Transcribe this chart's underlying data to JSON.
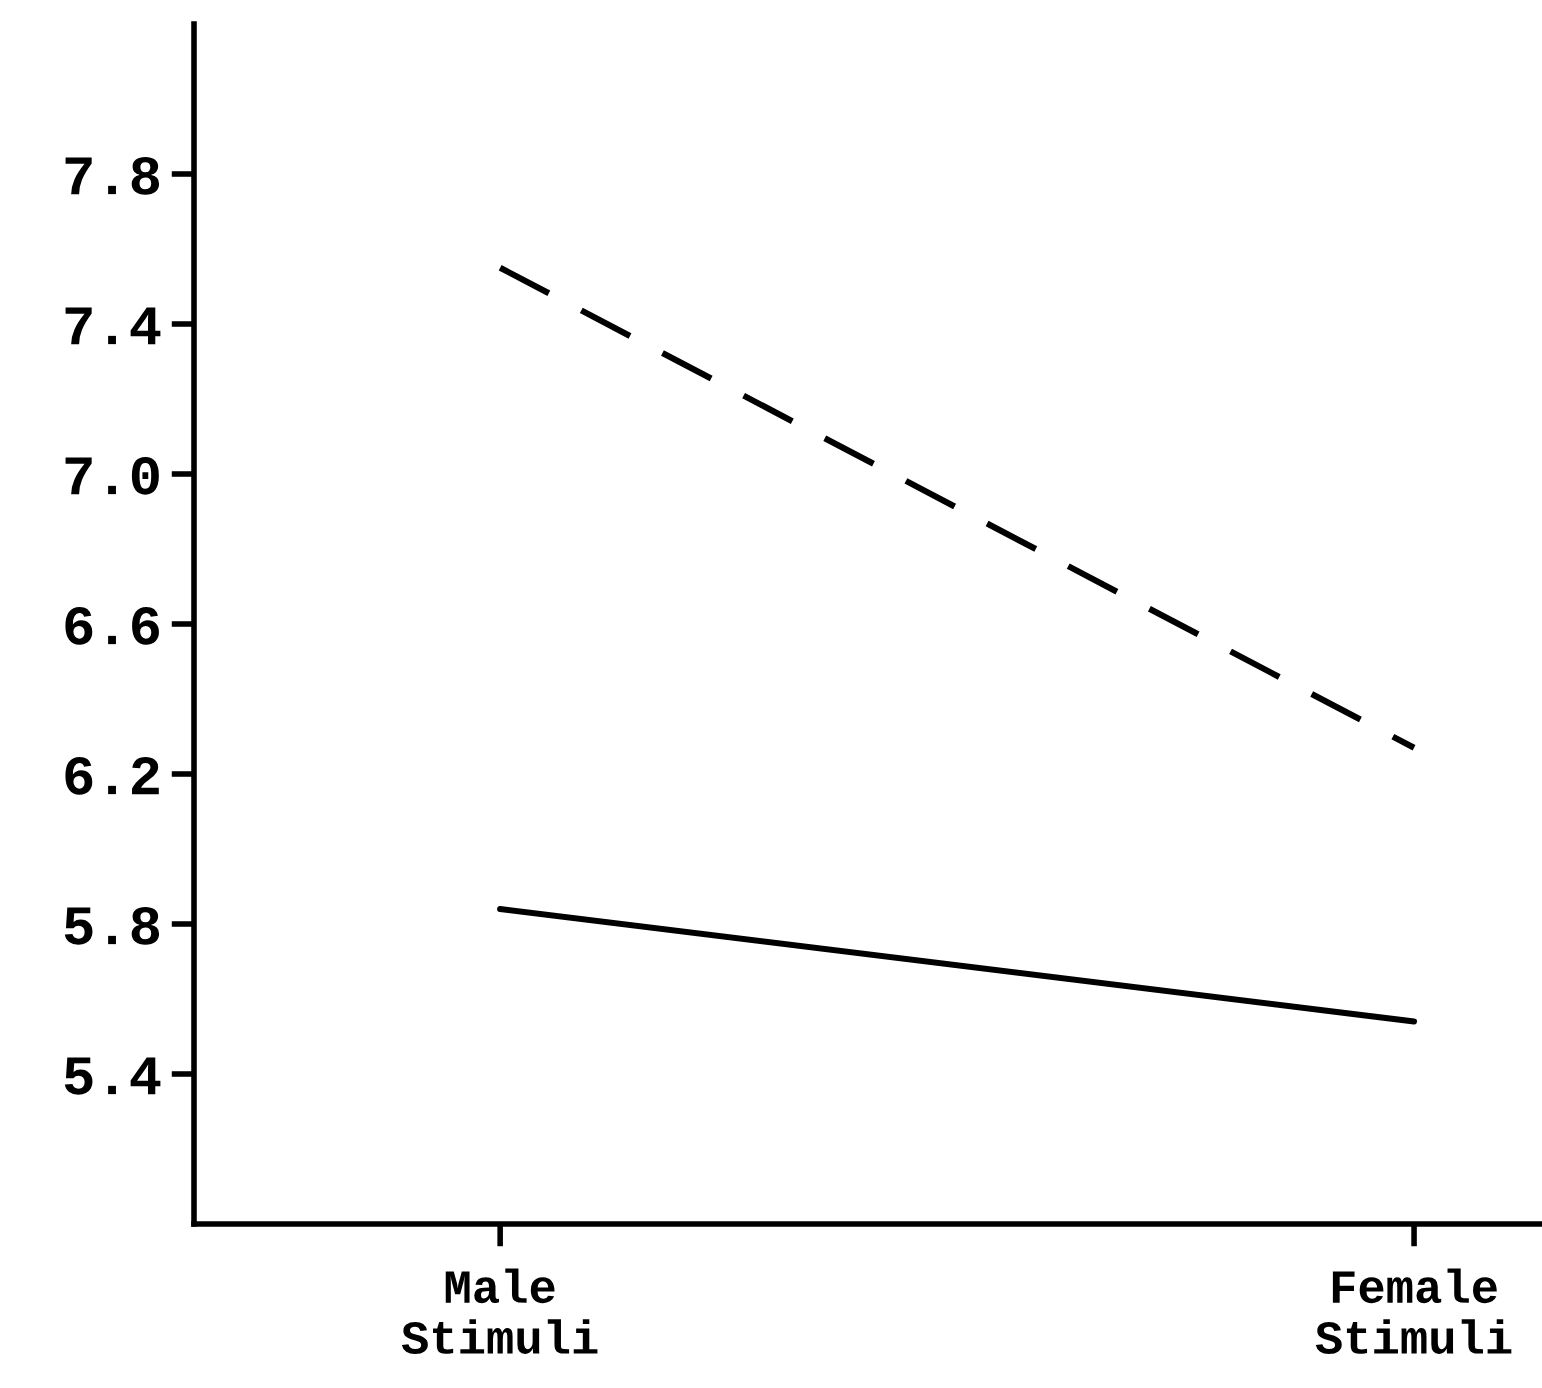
{
  "chart_data": {
    "type": "line",
    "categories": [
      "Male\nStimuli",
      "Female\nStimuli"
    ],
    "series": [
      {
        "color": "#000000",
        "line_style": "dashed",
        "values": [
          7.55,
          6.27
        ]
      },
      {
        "color": "#000000",
        "line_style": "solid",
        "values": [
          5.84,
          5.54
        ]
      }
    ],
    "ylim": [
      5.0,
      8.2
    ],
    "yticks": [
      {
        "value": 5.4,
        "label": "5.4"
      },
      {
        "value": 5.8,
        "label": "5.8"
      },
      {
        "value": 6.2,
        "label": "6.2"
      },
      {
        "value": 6.6,
        "label": "6.6"
      },
      {
        "value": 7.0,
        "label": "7.0"
      },
      {
        "value": 7.4,
        "label": "7.4"
      },
      {
        "value": 7.8,
        "label": "7.8"
      }
    ],
    "grid": false,
    "legend": false,
    "marker": "none"
  }
}
